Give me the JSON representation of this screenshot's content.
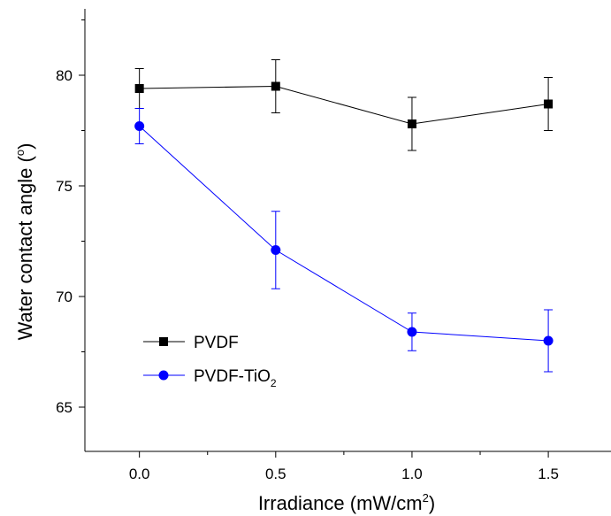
{
  "chart_data": {
    "type": "line",
    "title": "",
    "xlabel": "Irradiance (mW/cm",
    "xlabel_sup": "2",
    "xlabel_end": ")",
    "ylabel": "Water contact angle (",
    "ylabel_sup": "o",
    "ylabel_end": ")",
    "xlim": [
      -0.2,
      1.73
    ],
    "ylim": [
      63.0,
      83.0
    ],
    "xticks": [
      0.0,
      0.5,
      1.0,
      1.5
    ],
    "xtick_labels": [
      "0.0",
      "0.5",
      "1.0",
      "1.5"
    ],
    "yticks": [
      65,
      70,
      75,
      80
    ],
    "ytick_labels": [
      "65",
      "70",
      "75",
      "80"
    ],
    "grid": false,
    "legend_position": "lower-left",
    "series": [
      {
        "name": "PVDF",
        "name_sub": "",
        "color": "#000000",
        "marker": "square",
        "x": [
          0.0,
          0.5,
          1.0,
          1.5
        ],
        "y": [
          79.4,
          79.5,
          77.8,
          78.7
        ],
        "yerr": [
          0.9,
          1.2,
          1.2,
          1.2
        ]
      },
      {
        "name": "PVDF-TiO",
        "name_sub": "2",
        "color": "#0000ff",
        "marker": "circle",
        "x": [
          0.0,
          0.5,
          1.0,
          1.5
        ],
        "y": [
          77.7,
          72.1,
          68.4,
          68.0
        ],
        "yerr": [
          0.8,
          1.75,
          0.85,
          1.4
        ]
      }
    ]
  }
}
